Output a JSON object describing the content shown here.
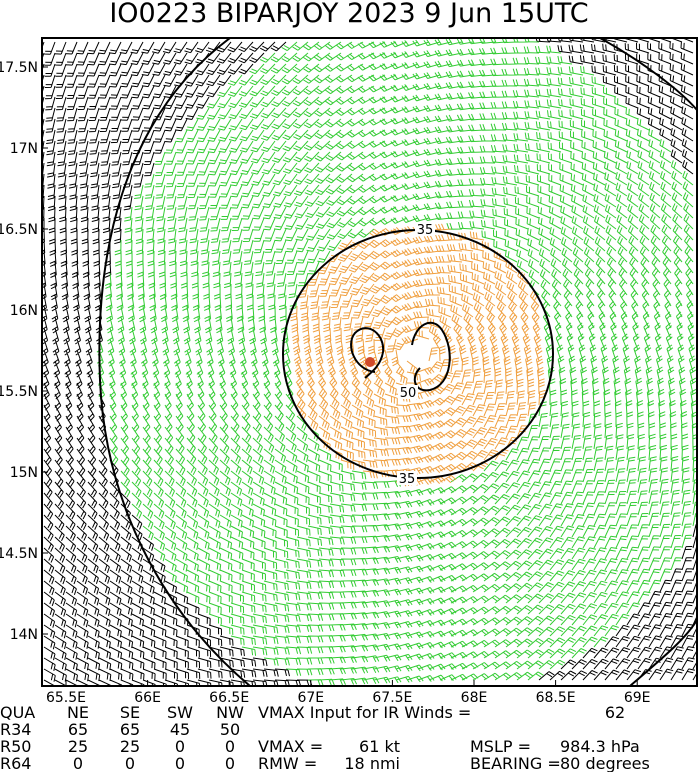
{
  "title": "IO0223    BIPARJOY 2023   9 Jun 15UTC",
  "lon_labels": [
    "65.5E",
    "66E",
    "66.5E",
    "67E",
    "67.5E",
    "68E",
    "68.5E",
    "69E"
  ],
  "lat_labels": [
    "17.5N",
    "17N",
    "16.5N",
    "16N",
    "15.5N",
    "15N",
    "14.5N",
    "14N"
  ],
  "contour_labels": [
    "35",
    "35",
    "50"
  ],
  "table": {
    "rows": [
      [
        "QUA",
        "NE",
        "SE",
        "SW",
        "NW",
        "VMAX Input for IR Winds =",
        "62"
      ],
      [
        "R34",
        "65",
        "65",
        "45",
        "50"
      ],
      [
        "R50",
        "25",
        "25",
        "0",
        "0",
        "VMAX =",
        "61 kt",
        "MSLP =",
        "984.3 hPa"
      ],
      [
        "R64",
        "0",
        "0",
        "0",
        "0",
        "RMW =",
        "18 nmi",
        "BEARING =",
        "80 degrees"
      ]
    ]
  }
}
